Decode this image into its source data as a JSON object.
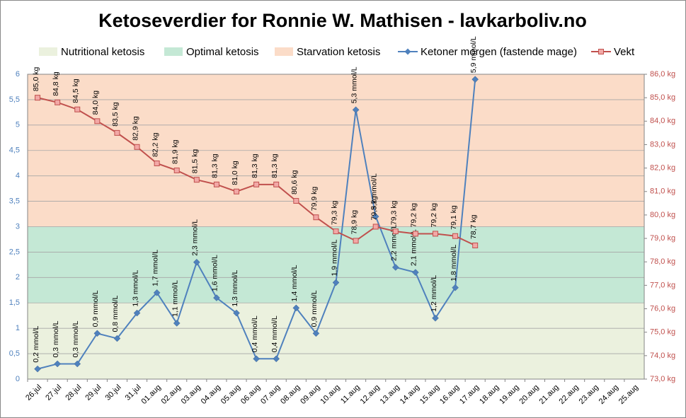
{
  "chart_data": {
    "type": "line",
    "title": "Ketoseverdier for Ronnie W. Mathisen - lavkarboliv.no",
    "categories": [
      "26.jul",
      "27.jul",
      "28.jul",
      "29.jul",
      "30.jul",
      "31.jul",
      "01.aug",
      "02.aug",
      "03.aug",
      "04.aug",
      "05.aug",
      "06.aug",
      "07.aug",
      "08.aug",
      "09.aug",
      "10.aug",
      "11.aug",
      "12.aug",
      "13.aug",
      "14.aug",
      "15.aug",
      "16.aug",
      "17.aug",
      "18.aug",
      "19.aug",
      "20.aug",
      "21.aug",
      "22.aug",
      "23.aug",
      "24.aug",
      "25.aug"
    ],
    "bands": [
      {
        "name": "Nutritional ketosis",
        "color": "#ebf1de",
        "from": 0,
        "to": 1.5
      },
      {
        "name": "Optimal ketosis",
        "color": "#c4e8d5",
        "from": 1.5,
        "to": 3
      },
      {
        "name": "Starvation ketosis",
        "color": "#fbdcc8",
        "from": 3,
        "to": 6
      }
    ],
    "series": [
      {
        "name": "Ketoner morgen (fastende mage)",
        "color": "#4f81bd",
        "marker": "diamond",
        "values": [
          0.2,
          0.3,
          0.3,
          0.9,
          0.8,
          1.3,
          1.7,
          1.1,
          2.3,
          1.6,
          1.3,
          0.4,
          0.4,
          1.4,
          0.9,
          1.9,
          5.3,
          3.2,
          2.2,
          2.1,
          1.2,
          1.8,
          5.9,
          null,
          null,
          null,
          null,
          null,
          null,
          null,
          null
        ],
        "value_labels": [
          "0,2 mmol/L",
          "0,3 mmol/L",
          "0,3 mmol/L",
          "0,9 mmol/L",
          "0,8 mmol/L",
          "1,3 mmol/L",
          "1,7 mmol/L",
          "1,1 mmol/L",
          "2,3 mmol/L",
          "1,6 mmol/L",
          "1,3 mmol/L",
          "0,4 mmol/L",
          "0,4 mmol/L",
          "1,4 mmol/L",
          "0,9 mmol/L",
          "1,9 mmol/L",
          "5,3 mmol/L",
          "3,2 mmol/L",
          "2,2 mmol/L",
          "2,1 mmol/L",
          "1,2 mmol/L",
          "1,8 mmol/L",
          "5,9 mmol/L",
          null,
          null,
          null,
          null,
          null,
          null,
          null,
          null
        ]
      },
      {
        "name": "Vekt",
        "color": "#c0504d",
        "marker": "square",
        "axis": "y2",
        "values": [
          85.0,
          84.8,
          84.5,
          84.0,
          83.5,
          82.9,
          82.2,
          81.9,
          81.5,
          81.3,
          81.0,
          81.3,
          81.3,
          80.6,
          79.9,
          79.3,
          78.9,
          79.5,
          79.3,
          79.2,
          79.2,
          79.1,
          78.7,
          null,
          null,
          null,
          null,
          null,
          null,
          null,
          null
        ],
        "value_labels": [
          "85,0 kg",
          "84,8 kg",
          "84,5 kg",
          "84,0 kg",
          "83,5 kg",
          "82,9 kg",
          "82,2 kg",
          "81,9 kg",
          "81,5 kg",
          "81,3 kg",
          "81,0 kg",
          "81,3 kg",
          "81,3 kg",
          "80,6 kg",
          "79,9 kg",
          "79,3 kg",
          "78,9 kg",
          "79,5 kg",
          "79,3 kg",
          "79,2 kg",
          "79,2 kg",
          "79,1 kg",
          "78,7 kg",
          null,
          null,
          null,
          null,
          null,
          null,
          null,
          null
        ]
      }
    ],
    "ylim": [
      0,
      6
    ],
    "yticks": [
      0,
      {
        "value": 0.5,
        "label": "0,5"
      },
      1,
      {
        "value": 1.5,
        "label": "1,5"
      },
      2,
      {
        "value": 2.5,
        "label": "2,5"
      },
      3,
      {
        "value": 3.5,
        "label": "3,5"
      },
      4,
      {
        "value": 4.5,
        "label": "4,5"
      },
      5,
      {
        "value": 5.5,
        "label": "5,5"
      },
      6
    ],
    "y2lim": [
      73,
      86
    ],
    "y2ticks": [
      {
        "value": 73,
        "label": "73,0 kg"
      },
      {
        "value": 74,
        "label": "74,0 kg"
      },
      {
        "value": 75,
        "label": "75,0 kg"
      },
      {
        "value": 76,
        "label": "76,0 kg"
      },
      {
        "value": 77,
        "label": "77,0 kg"
      },
      {
        "value": 78,
        "label": "78,0 kg"
      },
      {
        "value": 79,
        "label": "79,0 kg"
      },
      {
        "value": 80,
        "label": "80,0 kg"
      },
      {
        "value": 81,
        "label": "81,0 kg"
      },
      {
        "value": 82,
        "label": "82,0 kg"
      },
      {
        "value": 83,
        "label": "83,0 kg"
      },
      {
        "value": 84,
        "label": "84,0 kg"
      },
      {
        "value": 85,
        "label": "85,0 kg"
      },
      {
        "value": 86,
        "label": "86,0 kg"
      }
    ],
    "grid": true
  }
}
